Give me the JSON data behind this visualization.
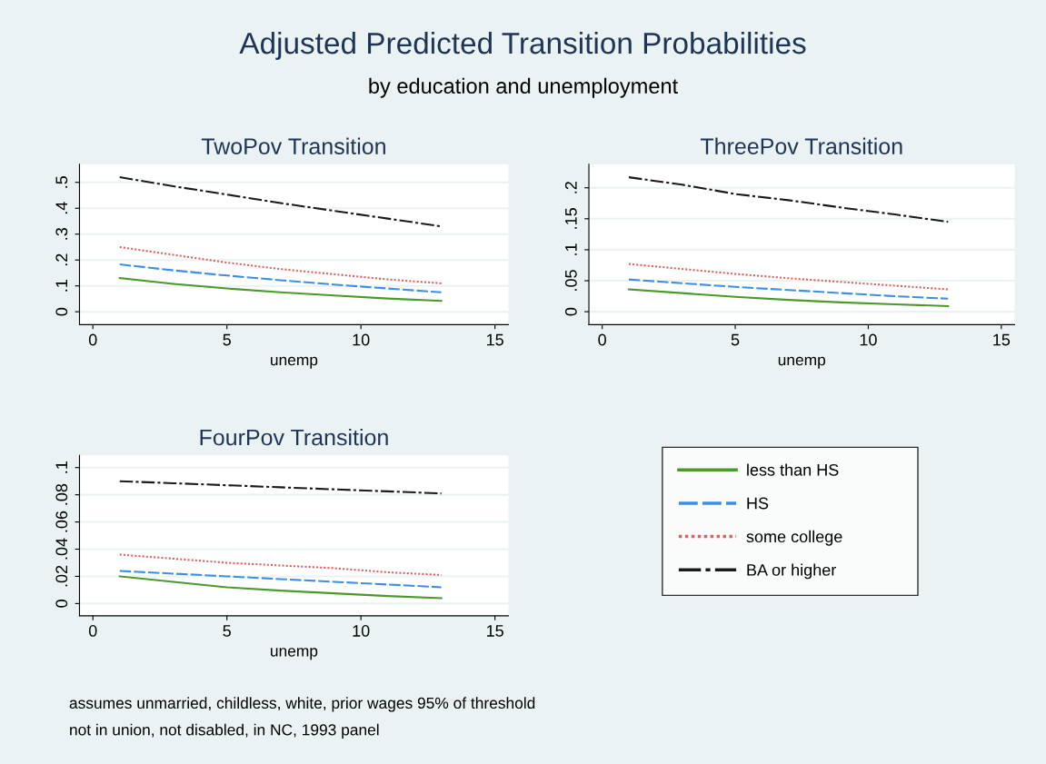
{
  "chart_data": [
    {
      "type": "other",
      "title": "Adjusted Predicted Transition Probabilities",
      "subtitle": "by education and unemployment",
      "annotations": [
        "assumes unmarried, childless, white, prior wages 95% of threshold",
        "not in union, not disabled, in NC, 1993 panel"
      ]
    },
    {
      "type": "line",
      "title": "TwoPov Transition",
      "xlabel": "unemp",
      "x": [
        1,
        3,
        5,
        7,
        9,
        11,
        13
      ],
      "xlim": [
        -0.5,
        15.5
      ],
      "xticks": [
        0,
        5,
        10,
        15
      ],
      "ylim": [
        -0.05,
        0.57
      ],
      "yticks": [
        {
          "value": 0,
          "label": "0"
        },
        {
          "value": 0.1,
          "label": ".1"
        },
        {
          "value": 0.2,
          "label": ".2"
        },
        {
          "value": 0.3,
          "label": ".3"
        },
        {
          "value": 0.4,
          "label": ".4"
        },
        {
          "value": 0.5,
          "label": ".5"
        }
      ],
      "grid": "y",
      "legend": false,
      "series": [
        {
          "color": "#4a9a2a",
          "line_style": "solid",
          "values": [
            0.13,
            0.108,
            0.09,
            0.075,
            0.063,
            0.051,
            0.042
          ]
        },
        {
          "color": "#3d8ee8",
          "line_style": "dashed",
          "values": [
            0.183,
            0.16,
            0.14,
            0.122,
            0.105,
            0.09,
            0.075
          ]
        },
        {
          "color": "#e06060",
          "line_style": "dotted",
          "values": [
            0.25,
            0.22,
            0.19,
            0.165,
            0.145,
            0.125,
            0.11
          ]
        },
        {
          "color": "#1a1a1a",
          "line_style": "dashdot",
          "values": [
            0.52,
            0.485,
            0.453,
            0.42,
            0.39,
            0.36,
            0.33
          ]
        }
      ]
    },
    {
      "type": "line",
      "title": "ThreePov Transition",
      "xlabel": "unemp",
      "x": [
        1,
        3,
        5,
        7,
        9,
        11,
        13
      ],
      "xlim": [
        -0.5,
        15.5
      ],
      "xticks": [
        0,
        5,
        10,
        15
      ],
      "ylim": [
        -0.021,
        0.238
      ],
      "yticks": [
        {
          "value": 0,
          "label": "0"
        },
        {
          "value": 0.05,
          "label": ".05"
        },
        {
          "value": 0.1,
          "label": ".1"
        },
        {
          "value": 0.15,
          "label": ".15"
        },
        {
          "value": 0.2,
          "label": ".2"
        }
      ],
      "grid": "y",
      "legend": false,
      "series": [
        {
          "color": "#4a9a2a",
          "line_style": "solid",
          "values": [
            0.036,
            0.03,
            0.024,
            0.019,
            0.015,
            0.012,
            0.009
          ]
        },
        {
          "color": "#3d8ee8",
          "line_style": "dashed",
          "values": [
            0.052,
            0.046,
            0.04,
            0.035,
            0.03,
            0.025,
            0.021
          ]
        },
        {
          "color": "#e06060",
          "line_style": "dotted",
          "values": [
            0.077,
            0.069,
            0.061,
            0.054,
            0.048,
            0.042,
            0.036
          ]
        },
        {
          "color": "#1a1a1a",
          "line_style": "dashdot",
          "values": [
            0.217,
            0.205,
            0.19,
            0.18,
            0.168,
            0.157,
            0.145
          ]
        }
      ]
    },
    {
      "type": "line",
      "title": "FourPov Transition",
      "xlabel": "unemp",
      "x": [
        1,
        3,
        5,
        7,
        9,
        11,
        13
      ],
      "xlim": [
        -0.5,
        15.5
      ],
      "xticks": [
        0,
        5,
        10,
        15
      ],
      "ylim": [
        -0.009,
        0.109
      ],
      "yticks": [
        {
          "value": 0,
          "label": "0"
        },
        {
          "value": 0.02,
          "label": ".02"
        },
        {
          "value": 0.04,
          "label": ".04"
        },
        {
          "value": 0.06,
          "label": ".06"
        },
        {
          "value": 0.08,
          "label": ".08"
        },
        {
          "value": 0.1,
          "label": ".1"
        }
      ],
      "grid": "y",
      "legend": "right",
      "series": [
        {
          "name": "less than HS",
          "color": "#4a9a2a",
          "line_style": "solid",
          "values": [
            0.02,
            0.016,
            0.012,
            0.0095,
            0.0075,
            0.0055,
            0.004
          ]
        },
        {
          "name": "HS",
          "color": "#3d8ee8",
          "line_style": "dashed",
          "values": [
            0.024,
            0.022,
            0.02,
            0.018,
            0.016,
            0.014,
            0.012
          ]
        },
        {
          "name": "some college",
          "color": "#e06060",
          "line_style": "dotted",
          "values": [
            0.036,
            0.033,
            0.03,
            0.028,
            0.026,
            0.023,
            0.021
          ]
        },
        {
          "name": "BA or higher",
          "color": "#1a1a1a",
          "line_style": "dashdot",
          "values": [
            0.09,
            0.0885,
            0.087,
            0.0855,
            0.084,
            0.0825,
            0.081
          ]
        }
      ]
    }
  ]
}
